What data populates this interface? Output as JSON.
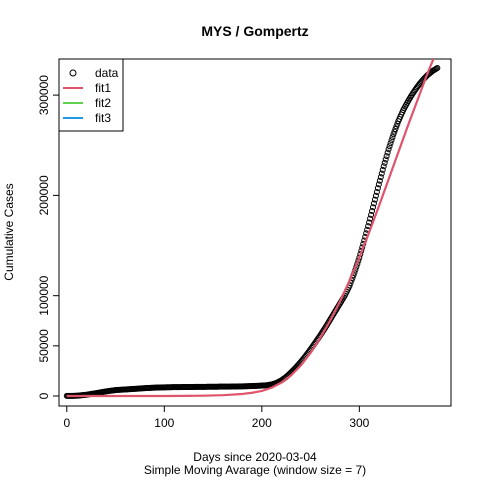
{
  "chart_data": {
    "type": "line",
    "title": "MYS / Gompertz",
    "xlabel": "Days since 2020-03-04",
    "subtitle": "Simple Moving Avarage (window size = 7)",
    "ylabel": "Cumulative Cases",
    "xlim": [
      -8,
      394
    ],
    "ylim": [
      -10000,
      336000
    ],
    "x_ticks": [
      0,
      100,
      200,
      300
    ],
    "y_ticks": [
      0,
      50000,
      100000,
      200000,
      300000
    ],
    "y_tick_labels": [
      "0",
      "50000",
      "100000",
      "200000",
      "300000"
    ],
    "legend_position": "top-left",
    "series": [
      {
        "name": "data",
        "style": "points",
        "color": "#000000",
        "x": [
          0,
          10,
          20,
          30,
          40,
          50,
          60,
          70,
          80,
          90,
          100,
          110,
          120,
          130,
          140,
          150,
          160,
          170,
          180,
          190,
          200,
          205,
          210,
          215,
          220,
          225,
          230,
          235,
          240,
          245,
          250,
          255,
          260,
          265,
          270,
          275,
          280,
          285,
          290,
          295,
          300,
          305,
          310,
          315,
          320,
          325,
          330,
          335,
          340,
          345,
          350,
          355,
          360,
          365,
          370,
          375,
          380
        ],
        "y": [
          50,
          200,
          1200,
          2800,
          4500,
          5900,
          6500,
          7100,
          7800,
          8300,
          8600,
          8800,
          8900,
          9000,
          9100,
          9200,
          9300,
          9400,
          9600,
          9900,
          10300,
          10700,
          11500,
          13000,
          15500,
          19000,
          23500,
          28500,
          34000,
          40000,
          46500,
          53500,
          60500,
          68000,
          76000,
          84000,
          92000,
          100000,
          110000,
          123000,
          138000,
          155000,
          173000,
          192000,
          211000,
          229000,
          246000,
          261000,
          274000,
          285000,
          294000,
          302000,
          309000,
          315000,
          320000,
          324000,
          327000
        ]
      },
      {
        "name": "fit1",
        "style": "line",
        "color": "#DF536B",
        "x": [
          0,
          20,
          40,
          60,
          80,
          100,
          120,
          140,
          160,
          180,
          190,
          200,
          210,
          220,
          230,
          240,
          250,
          260,
          270,
          280,
          290,
          300,
          310,
          320,
          330,
          340,
          350,
          360,
          370,
          376,
          380
        ],
        "y": [
          0,
          0,
          0,
          0,
          0,
          0,
          100,
          300,
          800,
          2000,
          3200,
          5000,
          8200,
          13300,
          20600,
          30400,
          43000,
          58000,
          75000,
          94000,
          115000,
          138000,
          163000,
          189000,
          216000,
          243000,
          270000,
          296000,
          322000,
          336000,
          346000
        ]
      },
      {
        "name": "fit2",
        "style": "line",
        "color": "#61D04F",
        "x": [],
        "y": []
      },
      {
        "name": "fit3",
        "style": "line",
        "color": "#2297E6",
        "x": [],
        "y": []
      }
    ]
  }
}
